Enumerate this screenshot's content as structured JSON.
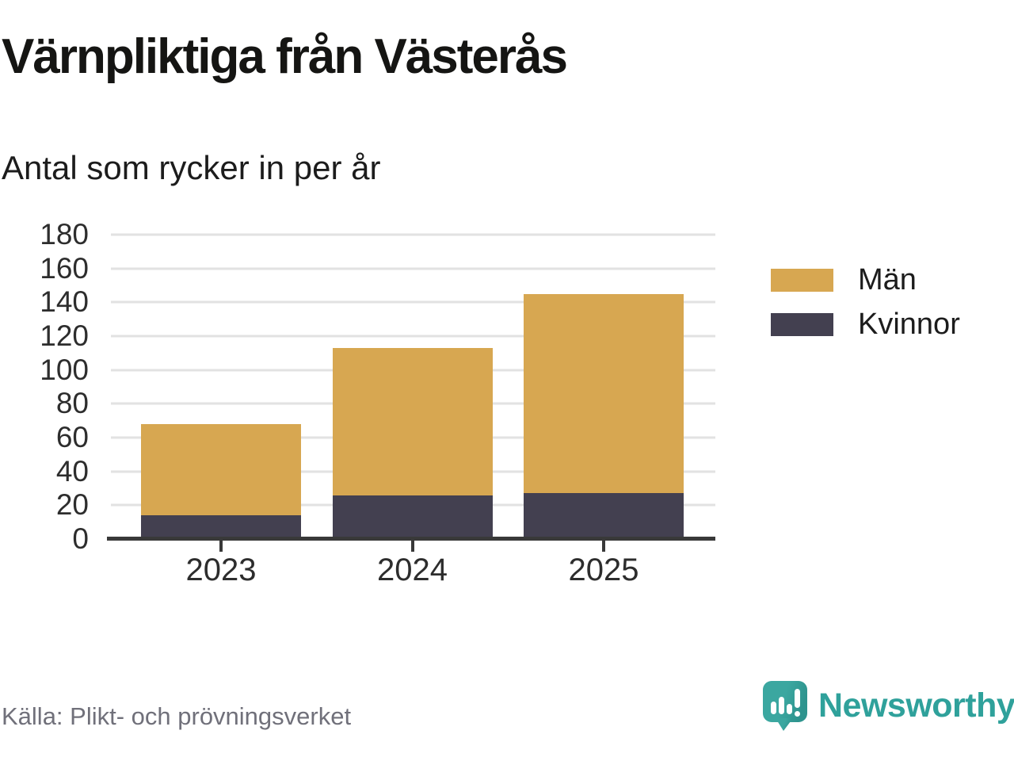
{
  "header": {
    "title": "Värnpliktiga från Västerås",
    "subtitle": "Antal som rycker in per år"
  },
  "chart_data": {
    "type": "bar",
    "stacked": true,
    "title": "Värnpliktiga från Västerås",
    "subtitle": "Antal som rycker in per år",
    "categories": [
      "2023",
      "2024",
      "2025"
    ],
    "series": [
      {
        "name": "Män",
        "color": "#d7a751",
        "values": [
          54,
          87,
          118
        ]
      },
      {
        "name": "Kvinnor",
        "color": "#434050",
        "values": [
          14,
          26,
          27
        ]
      }
    ],
    "stack_order_bottom_to_top": [
      "Kvinnor",
      "Män"
    ],
    "stacked_totals": [
      68,
      113,
      145
    ],
    "xlabel": "",
    "ylabel": "",
    "ylim": [
      0,
      180
    ],
    "yticks": [
      0,
      20,
      40,
      60,
      80,
      100,
      120,
      140,
      160,
      180
    ],
    "grid": "horizontal",
    "gridline_color": "#e2e2e2",
    "axis_color": "#393939",
    "legend_position": "right"
  },
  "footer": {
    "source": "Källa: Plikt- och prövningsverket",
    "brand": "Newsworthy"
  },
  "brand_colors": {
    "logo_teal": "#3ba7a0",
    "logo_teal_dark": "#2e948e",
    "logo_text_teal": "#2fa19b"
  }
}
